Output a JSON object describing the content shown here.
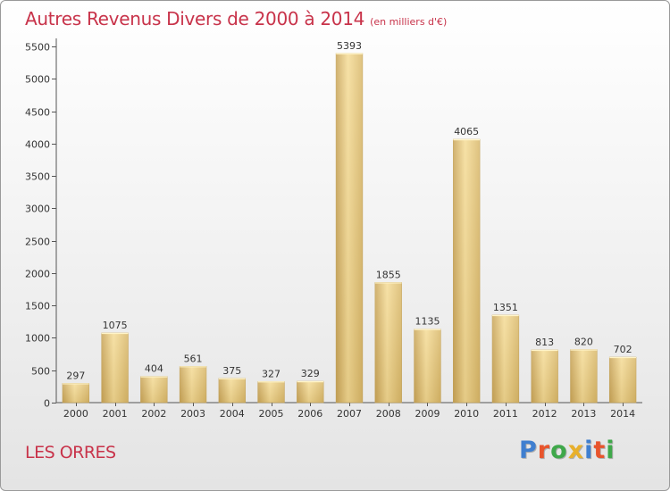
{
  "header": {
    "title": "Autres Revenus Divers de 2000 à 2014",
    "subtitle": "(en milliers d'€)"
  },
  "footer": {
    "commune": "LES ORRES",
    "logo_text": "Proxiti",
    "logo_colors": [
      "#3f7fd0",
      "#e8542c",
      "#3fa84a",
      "#e8b02c",
      "#3f7fd0",
      "#e8542c",
      "#3fa84a"
    ]
  },
  "chart_data": {
    "type": "bar",
    "categories": [
      "2000",
      "2001",
      "2002",
      "2003",
      "2004",
      "2005",
      "2006",
      "2007",
      "2008",
      "2009",
      "2010",
      "2011",
      "2012",
      "2013",
      "2014"
    ],
    "values": [
      297,
      1075,
      404,
      561,
      375,
      327,
      329,
      5393,
      1855,
      1135,
      4065,
      1351,
      813,
      820,
      702
    ],
    "ylim": [
      0,
      5500
    ],
    "yticks": [
      0,
      500,
      1000,
      1500,
      2000,
      2500,
      3000,
      3500,
      4000,
      4500,
      5000,
      5500
    ],
    "grid": false,
    "bar_color": "#e8c97a",
    "value_labels": true
  }
}
